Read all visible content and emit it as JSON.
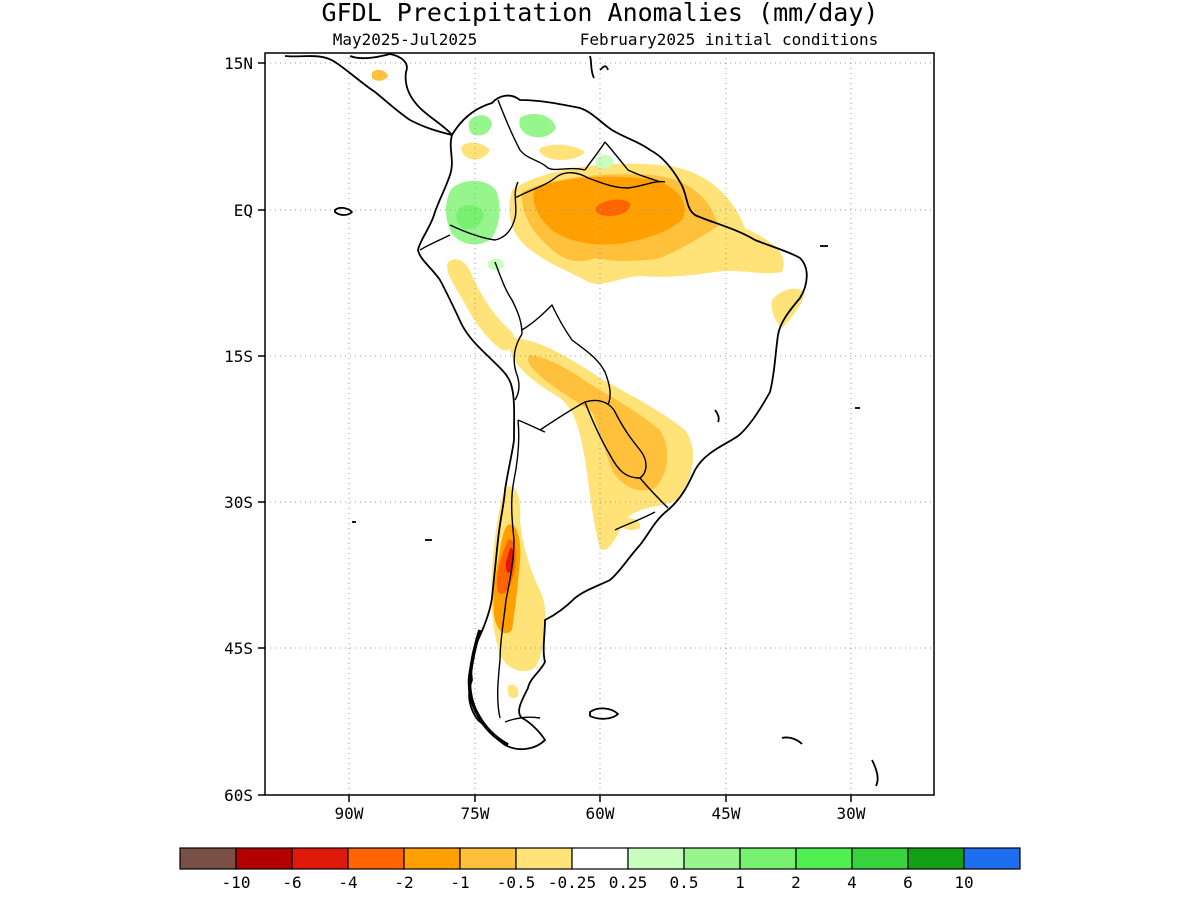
{
  "title": "GFDL Precipitation Anomalies (mm/day)",
  "subtitle_left": "May2025-Jul2025",
  "subtitle_right": "February2025 initial conditions",
  "lat_labels": [
    "15N",
    "EQ",
    "15S",
    "30S",
    "45S",
    "60S"
  ],
  "lon_labels": [
    "90W",
    "75W",
    "60W",
    "45W",
    "30W"
  ],
  "colorbar": {
    "colors": [
      "#7a4f45",
      "#b40000",
      "#e01a0a",
      "#ff6400",
      "#ffa000",
      "#ffc03c",
      "#ffe278",
      "#ffffff",
      "#c8ffbe",
      "#96f58c",
      "#78f070",
      "#50f050",
      "#37d23c",
      "#14a014",
      "#1e6ef0"
    ],
    "tick_labels": [
      "-10",
      "-6",
      "-4",
      "-2",
      "-1",
      "-0.5",
      "-0.25",
      "0.25",
      "0.5",
      "1",
      "2",
      "4",
      "6",
      "10"
    ]
  }
}
